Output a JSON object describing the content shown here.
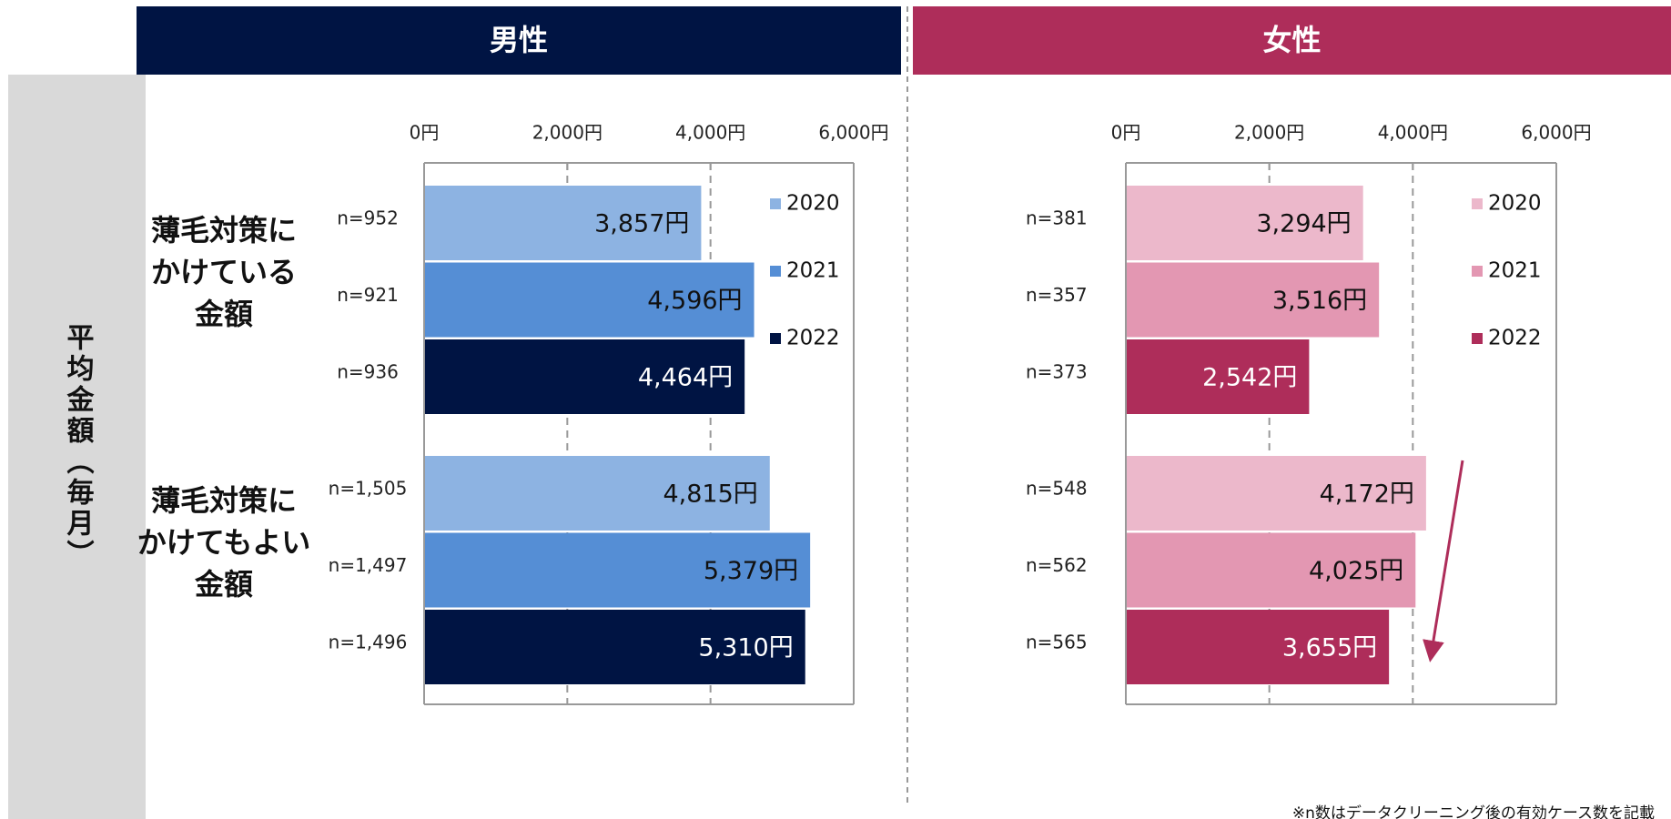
{
  "side_label": "平均金額（毎月）",
  "footnote": "※n数はデータクリーニング後の有効ケース数を記載",
  "categories": [
    "薄毛対策に\nかけている\n金額",
    "薄毛対策に\nかけてもよい\n金額"
  ],
  "chart_data": [
    {
      "type": "bar",
      "title": "男性",
      "header_color": "#001443",
      "xlim": [
        0,
        6000
      ],
      "xticks": [
        {
          "value": 0,
          "label": "0円"
        },
        {
          "value": 2000,
          "label": "2,000円"
        },
        {
          "value": 4000,
          "label": "4,000円"
        },
        {
          "value": 6000,
          "label": "6,000円"
        }
      ],
      "series": [
        {
          "name": "2020",
          "color": "#8db3e2",
          "values": [
            3857,
            4815
          ],
          "value_labels": [
            "3,857円",
            "4,815円"
          ],
          "n_labels": [
            "n=952",
            "n=1,505"
          ]
        },
        {
          "name": "2021",
          "color": "#558ed5",
          "values": [
            4596,
            5379
          ],
          "value_labels": [
            "4,596円",
            "5,379円"
          ],
          "n_labels": [
            "n=921",
            "n=1,497"
          ]
        },
        {
          "name": "2022",
          "color": "#001443",
          "values": [
            4464,
            5310
          ],
          "value_labels": [
            "4,464円",
            "5,310円"
          ],
          "n_labels": [
            "n=936",
            "n=1,496"
          ]
        }
      ]
    },
    {
      "type": "bar",
      "title": "女性",
      "header_color": "#ae2d5a",
      "xlim": [
        0,
        6000
      ],
      "xticks": [
        {
          "value": 0,
          "label": "0円"
        },
        {
          "value": 2000,
          "label": "2,000円"
        },
        {
          "value": 4000,
          "label": "4,000円"
        },
        {
          "value": 6000,
          "label": "6,000円"
        }
      ],
      "series": [
        {
          "name": "2020",
          "color": "#ecb8cb",
          "values": [
            3294,
            4172
          ],
          "value_labels": [
            "3,294円",
            "4,172円"
          ],
          "n_labels": [
            "n=381",
            "n=548"
          ]
        },
        {
          "name": "2021",
          "color": "#e397b2",
          "values": [
            3516,
            4025
          ],
          "value_labels": [
            "3,516円",
            "4,025円"
          ],
          "n_labels": [
            "n=357",
            "n=562"
          ]
        },
        {
          "name": "2022",
          "color": "#ae2d5a",
          "values": [
            2542,
            3655
          ],
          "value_labels": [
            "2,542円",
            "3,655円"
          ],
          "n_labels": [
            "n=373",
            "n=565"
          ]
        }
      ]
    }
  ]
}
